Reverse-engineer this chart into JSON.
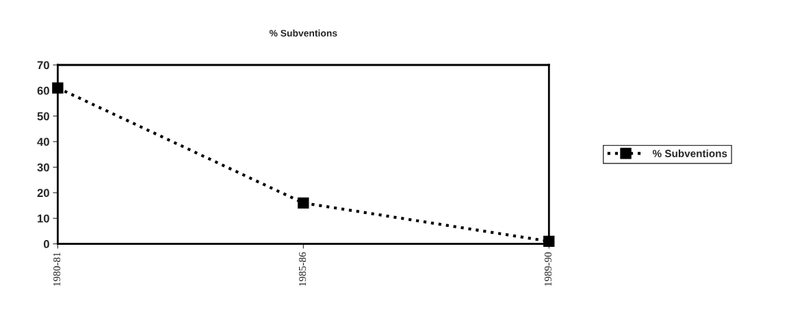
{
  "chart_data": {
    "type": "line",
    "title": "% Subventions",
    "categories": [
      "1980-81",
      "1985-86",
      "1989-90"
    ],
    "series": [
      {
        "name": "% Subventions",
        "color": "#000000",
        "values": [
          61,
          16,
          1
        ]
      }
    ],
    "ylim": [
      0,
      70
    ],
    "yticks": [
      0,
      10,
      20,
      30,
      40,
      50,
      60,
      70
    ],
    "marker": "square",
    "line_style": "dotted",
    "legend": "right",
    "grid": false
  }
}
